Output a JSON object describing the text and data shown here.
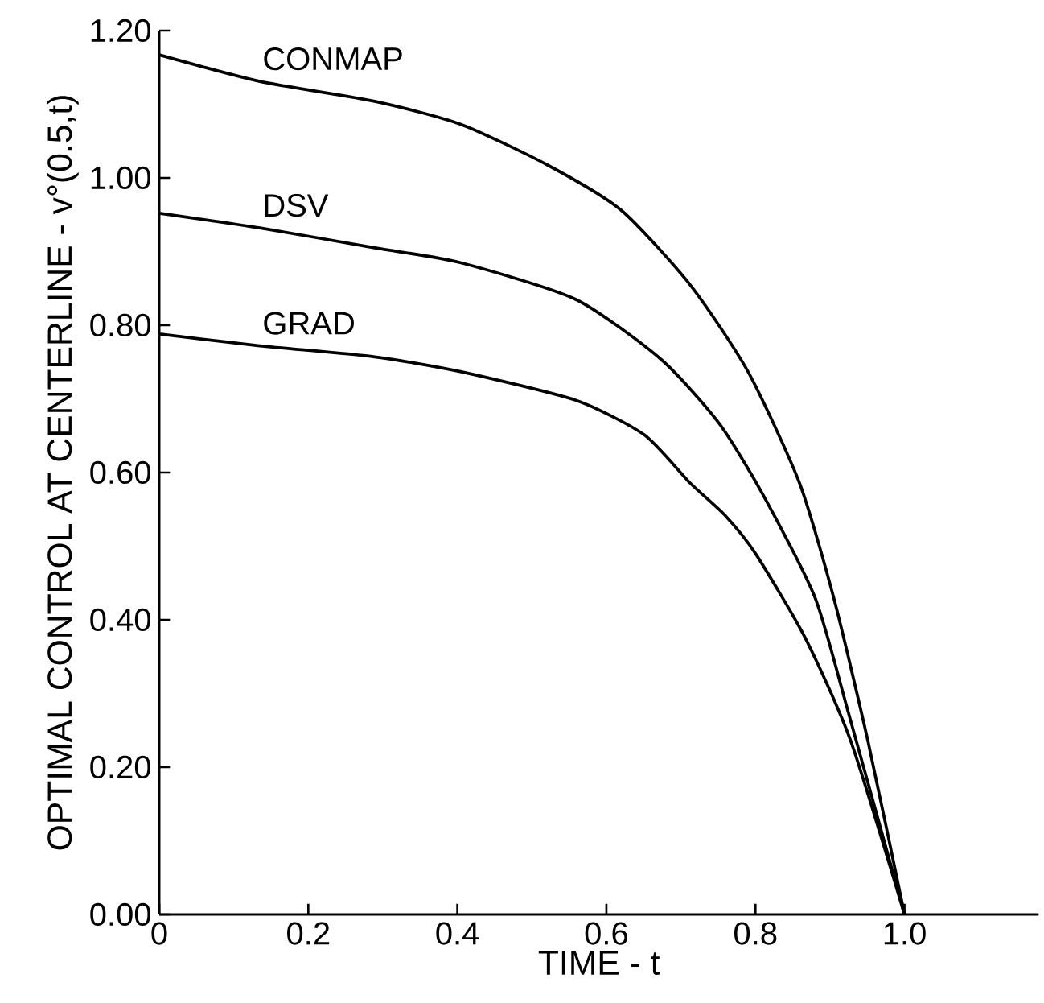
{
  "chart_data": {
    "type": "line",
    "xlabel": "TIME - t",
    "ylabel": "OPTIMAL CONTROL AT CENTERLINE - v°(0.5,t)",
    "xlim": [
      0,
      1.18
    ],
    "ylim": [
      0,
      1.2
    ],
    "xticks": [
      {
        "value": 0,
        "label": "0"
      },
      {
        "value": 0.2,
        "label": "0.2"
      },
      {
        "value": 0.4,
        "label": "0.4"
      },
      {
        "value": 0.6,
        "label": "0.6"
      },
      {
        "value": 0.8,
        "label": "0.8"
      },
      {
        "value": 1.0,
        "label": "1.0"
      }
    ],
    "yticks": [
      {
        "value": 0,
        "label": "0.00"
      },
      {
        "value": 0.2,
        "label": "0.20"
      },
      {
        "value": 0.4,
        "label": "0.40"
      },
      {
        "value": 0.6,
        "label": "0.60"
      },
      {
        "value": 0.8,
        "label": "0.80"
      },
      {
        "value": 1.0,
        "label": "1.00"
      },
      {
        "value": 1.2,
        "label": "1.20"
      }
    ],
    "grid": false,
    "legend": false,
    "marker": "none",
    "line_style": "solid",
    "series": [
      {
        "name": "CONMAP",
        "color": "#000000",
        "x": [
          0,
          0.135,
          0.289,
          0.404,
          0.52,
          0.62,
          0.713,
          0.79,
          0.859,
          0.905,
          0.951,
          1.0
        ],
        "values": [
          1.167,
          1.131,
          1.104,
          1.073,
          1.018,
          0.956,
          0.854,
          0.737,
          0.586,
          0.43,
          0.235,
          0
        ]
      },
      {
        "name": "DSV",
        "color": "#000000",
        "x": [
          0,
          0.135,
          0.289,
          0.404,
          0.559,
          0.674,
          0.751,
          0.81,
          0.88,
          0.925,
          1.0
        ],
        "values": [
          0.952,
          0.932,
          0.905,
          0.885,
          0.835,
          0.753,
          0.667,
          0.57,
          0.43,
          0.273,
          0
        ]
      },
      {
        "name": "GRAD",
        "color": "#000000",
        "x": [
          0,
          0.135,
          0.289,
          0.404,
          0.559,
          0.651,
          0.712,
          0.759,
          0.8,
          0.867,
          0.928,
          1.0
        ],
        "values": [
          0.788,
          0.772,
          0.757,
          0.737,
          0.698,
          0.651,
          0.586,
          0.542,
          0.49,
          0.375,
          0.235,
          0
        ]
      }
    ]
  }
}
